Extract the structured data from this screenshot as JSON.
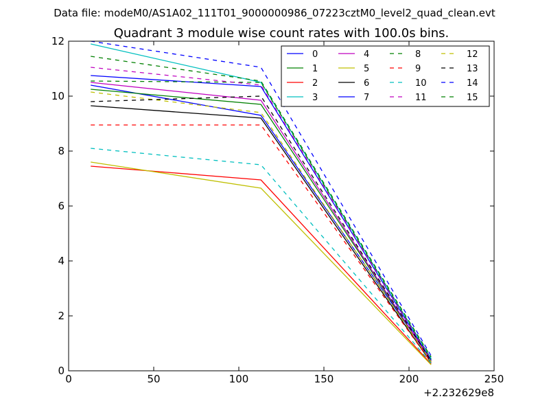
{
  "chart_data": {
    "type": "line",
    "suptitle": "Data file: modeM0/AS1A02_111T01_9000000986_07223cztM0_level2_quad_clean.evt",
    "title": "Quadrant 3 module wise count rates with 100.0s bins.",
    "xlabel": "",
    "ylabel": "",
    "x_offset_label": "+2.232629e8",
    "xlim": [
      0,
      250
    ],
    "ylim": [
      0,
      12
    ],
    "xticks": [
      0,
      50,
      100,
      150,
      200,
      250
    ],
    "yticks": [
      0,
      2,
      4,
      6,
      8,
      10,
      12
    ],
    "xtick_labels": [
      "0",
      "50",
      "100",
      "150",
      "200",
      "250"
    ],
    "ytick_labels": [
      "0",
      "2",
      "4",
      "6",
      "8",
      "10",
      "12"
    ],
    "x": [
      13,
      113,
      213
    ],
    "legend": {
      "placement": "top-right",
      "columns": 4
    },
    "series": [
      {
        "name": "0",
        "color": "#0000ff",
        "style": "solid",
        "values": [
          10.4,
          9.3,
          0.4
        ]
      },
      {
        "name": "1",
        "color": "#008000",
        "style": "solid",
        "values": [
          10.25,
          9.7,
          0.35
        ]
      },
      {
        "name": "2",
        "color": "#ff0000",
        "style": "solid",
        "values": [
          7.45,
          6.95,
          0.25
        ]
      },
      {
        "name": "3",
        "color": "#00bfbf",
        "style": "solid",
        "values": [
          11.9,
          10.5,
          0.45
        ]
      },
      {
        "name": "4",
        "color": "#bf00bf",
        "style": "solid",
        "values": [
          10.5,
          9.85,
          0.35
        ]
      },
      {
        "name": "5",
        "color": "#bfbf00",
        "style": "solid",
        "values": [
          7.6,
          6.65,
          0.22
        ]
      },
      {
        "name": "6",
        "color": "#000000",
        "style": "solid",
        "values": [
          9.65,
          9.2,
          0.3
        ]
      },
      {
        "name": "7",
        "color": "#0000ff",
        "style": "solid",
        "values": [
          10.75,
          10.35,
          0.38
        ]
      },
      {
        "name": "8",
        "color": "#008000",
        "style": "dashed",
        "values": [
          10.55,
          10.5,
          0.42
        ]
      },
      {
        "name": "9",
        "color": "#ff0000",
        "style": "dashed",
        "values": [
          8.95,
          8.95,
          0.3
        ]
      },
      {
        "name": "10",
        "color": "#00bfbf",
        "style": "dashed",
        "values": [
          8.1,
          7.5,
          0.28
        ]
      },
      {
        "name": "11",
        "color": "#bf00bf",
        "style": "dashed",
        "values": [
          11.05,
          10.4,
          0.4
        ]
      },
      {
        "name": "12",
        "color": "#bfbf00",
        "style": "dashed",
        "values": [
          10.15,
          9.4,
          0.33
        ]
      },
      {
        "name": "13",
        "color": "#000000",
        "style": "dashed",
        "values": [
          9.8,
          10.0,
          0.36
        ]
      },
      {
        "name": "14",
        "color": "#0000ff",
        "style": "dashed",
        "values": [
          12.0,
          11.05,
          0.55
        ]
      },
      {
        "name": "15",
        "color": "#008000",
        "style": "dashed",
        "values": [
          11.45,
          10.55,
          0.5
        ]
      }
    ]
  }
}
